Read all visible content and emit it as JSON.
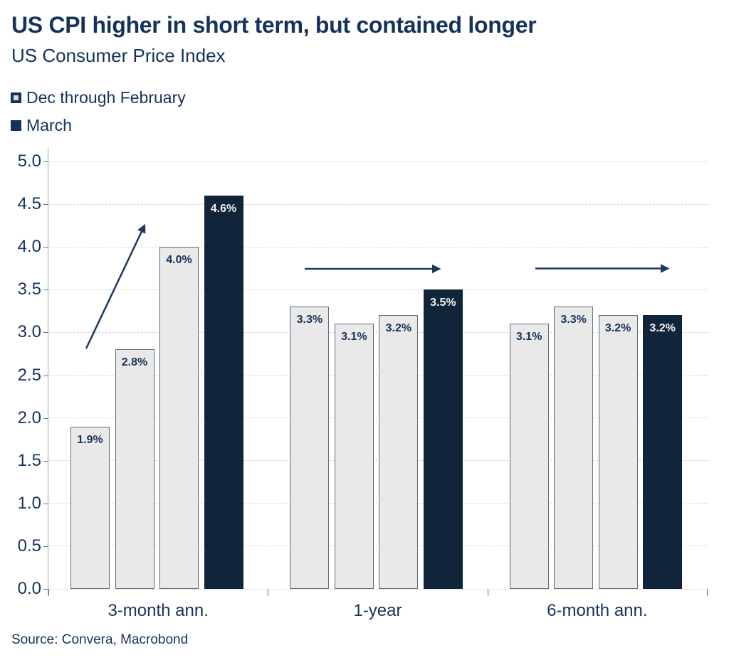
{
  "header": {
    "title": "US CPI higher in short term, but contained longer",
    "subtitle": "US Consumer Price Index"
  },
  "legend": {
    "items": [
      {
        "label": "Dec through February",
        "style": "light-outlined-square"
      },
      {
        "label": "March",
        "style": "dark-filled-square"
      }
    ]
  },
  "chart_data": {
    "type": "bar",
    "title": "US CPI higher in short term, but contained longer",
    "subtitle": "US Consumer Price Index",
    "xlabel": "",
    "ylabel": "",
    "ylim": [
      0,
      5.0
    ],
    "ytick_step": 0.5,
    "yticks": [
      "0.0",
      "0.5",
      "1.0",
      "1.5",
      "2.0",
      "2.5",
      "3.0",
      "3.5",
      "4.0",
      "4.5",
      "5.0"
    ],
    "grid": "horizontal-dashed",
    "legend_position": "top-left",
    "categories": [
      "3-month ann.",
      "1-year",
      "6-month ann."
    ],
    "groups": [
      {
        "category": "3-month ann.",
        "annotation": "diagonal-up-arrow",
        "bars": [
          {
            "value": 1.9,
            "label": "1.9%",
            "series": "Dec through February"
          },
          {
            "value": 2.8,
            "label": "2.8%",
            "series": "Dec through February"
          },
          {
            "value": 4.0,
            "label": "4.0%",
            "series": "Dec through February"
          },
          {
            "value": 4.6,
            "label": "4.6%",
            "series": "March"
          }
        ]
      },
      {
        "category": "1-year",
        "annotation": "horizontal-right-arrow",
        "bars": [
          {
            "value": 3.3,
            "label": "3.3%",
            "series": "Dec through February"
          },
          {
            "value": 3.1,
            "label": "3.1%",
            "series": "Dec through February"
          },
          {
            "value": 3.2,
            "label": "3.2%",
            "series": "Dec through February"
          },
          {
            "value": 3.5,
            "label": "3.5%",
            "series": "March"
          }
        ]
      },
      {
        "category": "6-month ann.",
        "annotation": "horizontal-right-arrow",
        "bars": [
          {
            "value": 3.1,
            "label": "3.1%",
            "series": "Dec through February"
          },
          {
            "value": 3.3,
            "label": "3.3%",
            "series": "Dec through February"
          },
          {
            "value": 3.2,
            "label": "3.2%",
            "series": "Dec through February"
          },
          {
            "value": 3.2,
            "label": "3.2%",
            "series": "March"
          }
        ]
      }
    ]
  },
  "footer": {
    "source": "Source: Convera, Macrobond"
  },
  "colors": {
    "background": "#ffffff",
    "navy_text": "#16325b",
    "dark_bar": "#102539",
    "light_bar_fill": "#e9e9e9",
    "light_bar_border": "#5c6b7a",
    "bar_label_dark": "#f2f2f2",
    "gridline": "#d7d7d7",
    "axis_line": "#a3a3a3",
    "tick": "#6e6e6e",
    "arrow": "#1b3a5f"
  }
}
